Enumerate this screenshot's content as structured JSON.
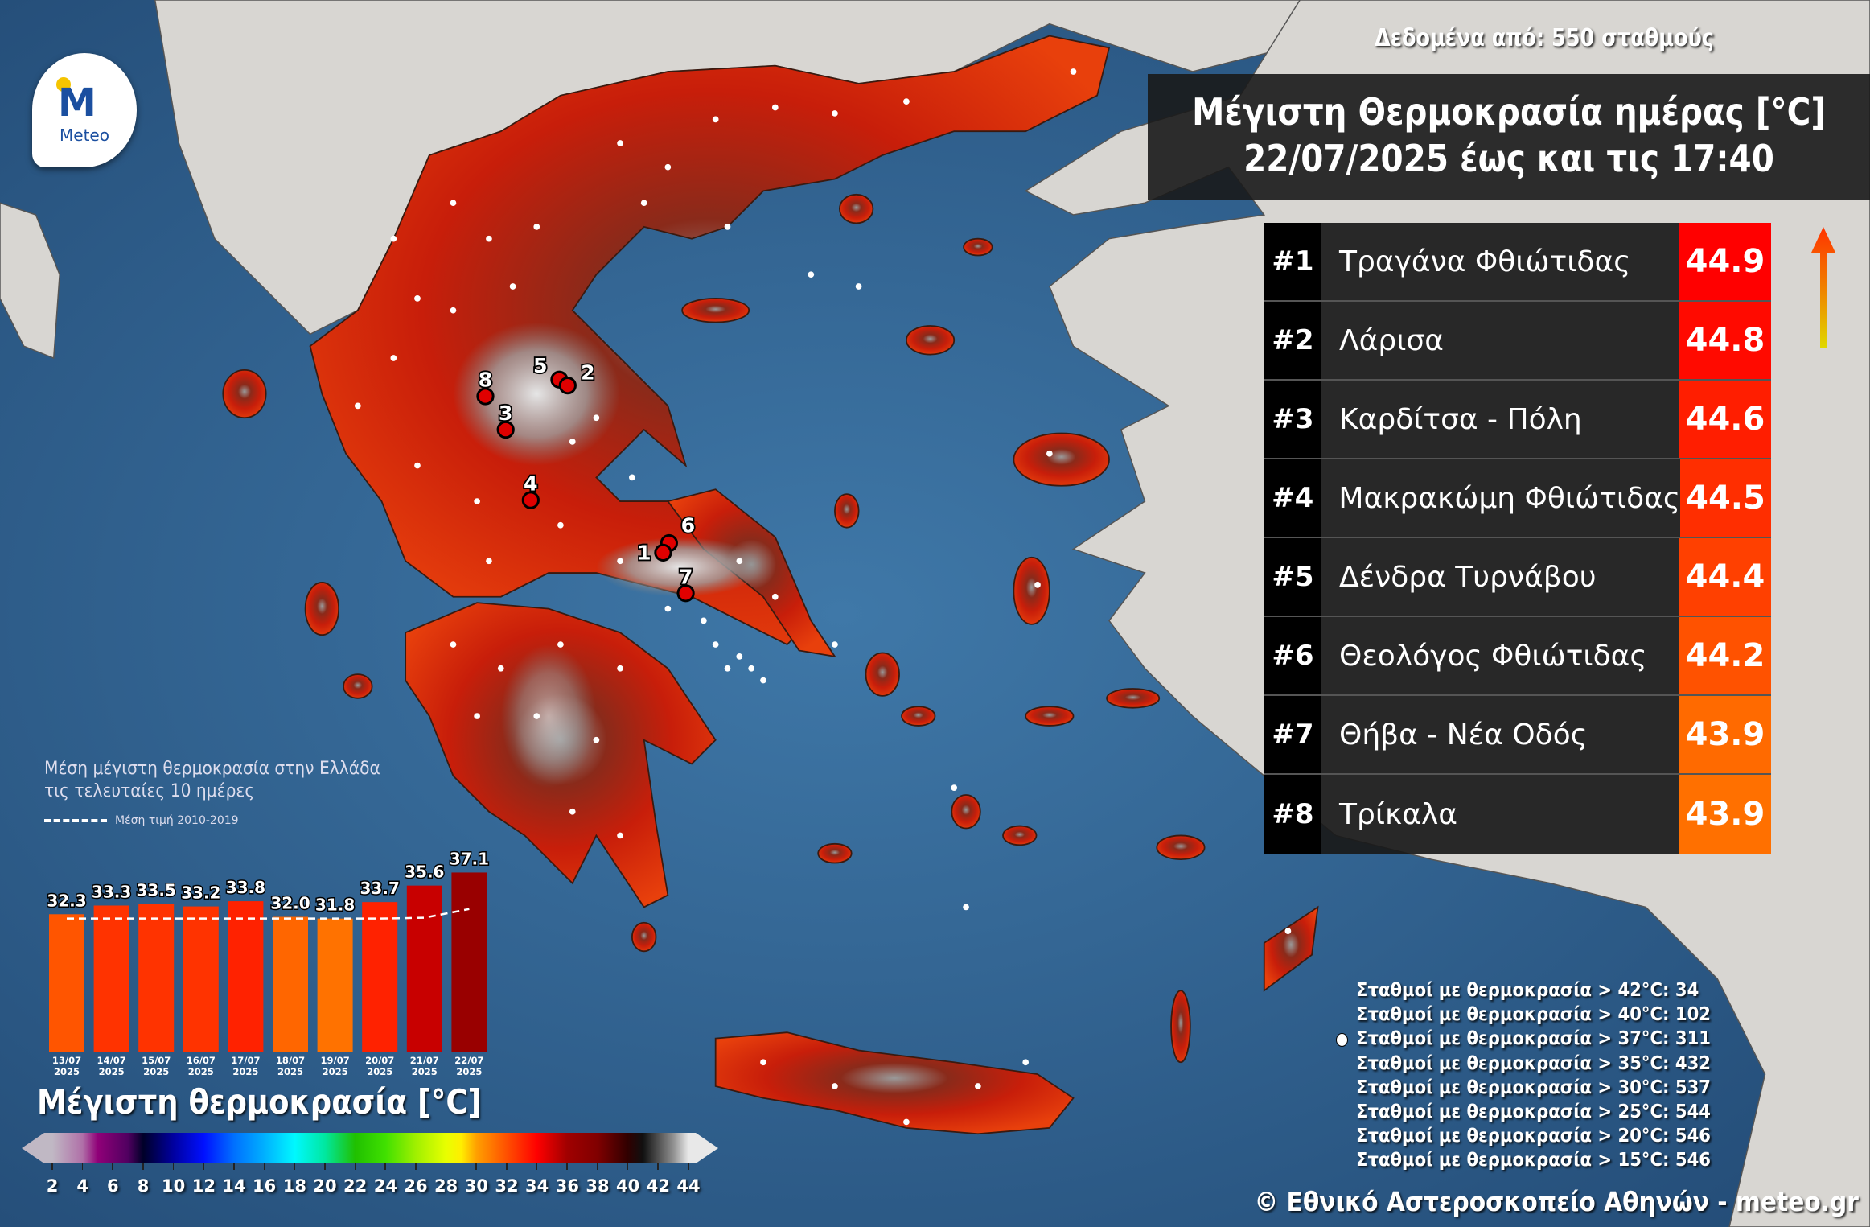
{
  "logo": {
    "brand": "Meteo",
    "icon": "meteo-logo"
  },
  "source_note": "Δεδομένα από: 550 σταθμούς",
  "title": {
    "line1": "Μέγιστη Θερμοκρασία ημέρας [°C]",
    "line2": "22/07/2025 έως και τις 17:40"
  },
  "ranking": [
    {
      "rank": "#1",
      "station": "Τραγάνα Φθιώτιδας",
      "value": "44.9",
      "color": "#ff0000"
    },
    {
      "rank": "#2",
      "station": "Λάρισα",
      "value": "44.8",
      "color": "#ff0a00"
    },
    {
      "rank": "#3",
      "station": "Καρδίτσα - Πόλη",
      "value": "44.6",
      "color": "#ff1e00"
    },
    {
      "rank": "#4",
      "station": "Μακρακώμη Φθιώτιδας",
      "value": "44.5",
      "color": "#ff2e00"
    },
    {
      "rank": "#5",
      "station": "Δένδρα Τυρνάβου",
      "value": "44.4",
      "color": "#ff4000"
    },
    {
      "rank": "#6",
      "station": "Θεολόγος Φθιώτιδας",
      "value": "44.2",
      "color": "#ff5200"
    },
    {
      "rank": "#7",
      "station": "Θήβα - Νέα Οδός",
      "value": "43.9",
      "color": "#ff6a00"
    },
    {
      "rank": "#8",
      "station": "Τρίκαλα",
      "value": "43.9",
      "color": "#ff7000"
    }
  ],
  "map_markers": [
    "1",
    "2",
    "3",
    "4",
    "5",
    "6",
    "7",
    "8"
  ],
  "chart_data": {
    "type": "bar",
    "title": "Μέση μέγιστη θερμοκρασία στην Ελλάδα",
    "subtitle": "τις τελευταίες 10 ημέρες",
    "categories": [
      [
        "13/07",
        "2025"
      ],
      [
        "14/07",
        "2025"
      ],
      [
        "15/07",
        "2025"
      ],
      [
        "16/07",
        "2025"
      ],
      [
        "17/07",
        "2025"
      ],
      [
        "18/07",
        "2025"
      ],
      [
        "19/07",
        "2025"
      ],
      [
        "20/07",
        "2025"
      ],
      [
        "21/07",
        "2025"
      ],
      [
        "22/07",
        "2025"
      ]
    ],
    "values": [
      32.3,
      33.3,
      33.5,
      33.2,
      33.8,
      32.0,
      31.8,
      33.7,
      35.6,
      37.1
    ],
    "value_labels": [
      "32.3",
      "33.3",
      "33.5",
      "33.2",
      "33.8",
      "32.0",
      "31.8",
      "33.7",
      "35.6",
      "37.1"
    ],
    "bar_colors": [
      "#ff5500",
      "#ff3300",
      "#ff3300",
      "#ff3300",
      "#ff2200",
      "#ff6600",
      "#ff7200",
      "#ff2200",
      "#c80000",
      "#990000"
    ],
    "reference_series": {
      "name": "Μέση τιμή 2010-2019",
      "style": "dashed",
      "color": "#ffffff",
      "values": [
        31.8,
        31.8,
        31.8,
        31.8,
        31.8,
        31.8,
        31.8,
        31.8,
        31.9,
        32.9
      ]
    },
    "xlabel": "",
    "ylabel": ""
  },
  "colorbar": {
    "title": "Μέγιστη θερμοκρασία [°C]",
    "ticks": [
      2,
      4,
      6,
      8,
      10,
      12,
      14,
      16,
      18,
      20,
      22,
      24,
      26,
      28,
      30,
      32,
      34,
      36,
      38,
      40,
      42,
      44
    ]
  },
  "stats": [
    "Σταθμοί με θερμοκρασία > 42°C: 34",
    "Σταθμοί με θερμοκρασία > 40°C: 102",
    "Σταθμοί με θερμοκρασία > 37°C: 311",
    "Σταθμοί με θερμοκρασία > 35°C: 432",
    "Σταθμοί με θερμοκρασία > 30°C: 537",
    "Σταθμοί με θερμοκρασία > 25°C: 544",
    "Σταθμοί με θερμοκρασία > 20°C: 546",
    "Σταθμοί με θερμοκρασία > 15°C: 546"
  ],
  "footer": "© Εθνικό Αστεροσκοπείο Αθηνών - meteo.gr"
}
